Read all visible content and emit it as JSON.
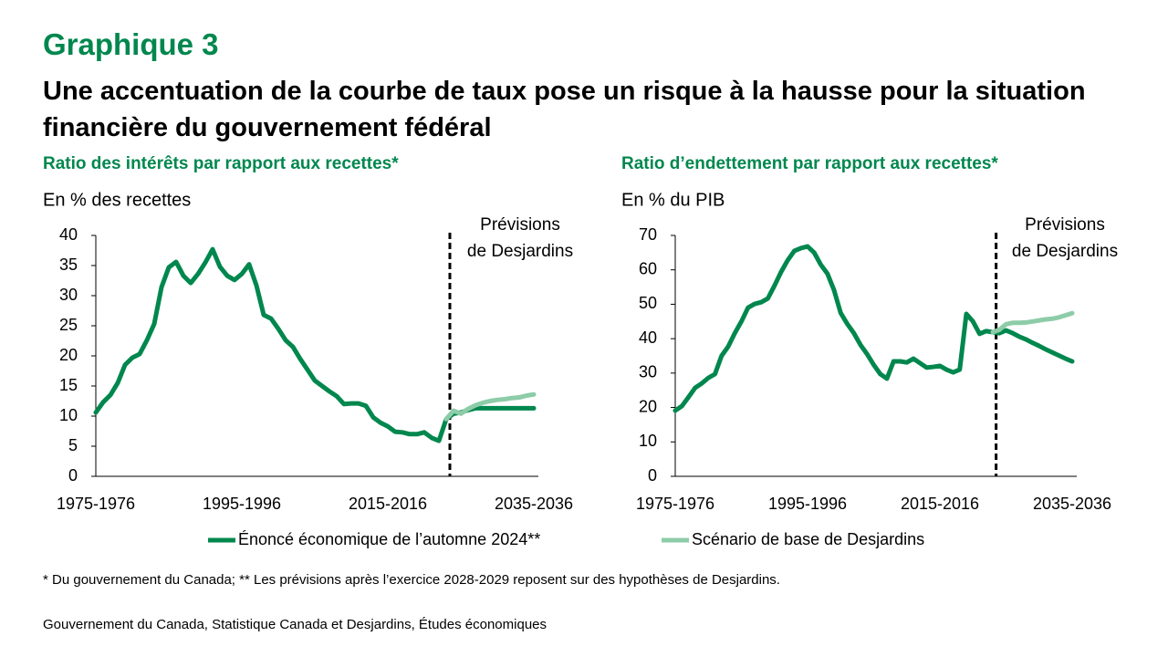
{
  "header": {
    "label": "Graphique 3",
    "title": "Une accentuation de la courbe de taux pose un risque à la hausse pour la situation financière du gouvernement fédéral"
  },
  "note": "* Du gouvernement du Canada; ** Les prévisions après l’exercice 2028-2029 reposent sur des hypothèses de Desjardins.",
  "source": "Gouvernement du Canada, Statistique Canada et Desjardins, Études économiques",
  "chart_data": [
    {
      "type": "line",
      "title": "Ratio des intérêts par rapport aux recettes*",
      "ylabel": "En % des recettes",
      "annotation": [
        "Prévisions",
        "de Desjardins"
      ],
      "categories": [
        "1975-1976",
        null,
        null,
        null,
        null,
        null,
        null,
        null,
        null,
        null,
        null,
        null,
        null,
        null,
        null,
        null,
        null,
        null,
        null,
        null,
        "1995-1996",
        null,
        null,
        null,
        null,
        null,
        null,
        null,
        null,
        null,
        null,
        null,
        null,
        null,
        null,
        null,
        null,
        null,
        null,
        null,
        "2015-2016",
        null,
        null,
        null,
        null,
        null,
        null,
        null,
        null,
        null,
        null,
        null,
        null,
        null,
        null,
        null,
        null,
        null,
        null,
        null,
        "2035-2036"
      ],
      "ylim": [
        0,
        40
      ],
      "yticks": [
        0,
        5,
        10,
        15,
        20,
        25,
        30,
        35,
        40
      ],
      "series": [
        {
          "name": "Énoncé économique de l’automne 2024**",
          "color": "#00874E",
          "values": [
            10.6,
            12.3,
            13.5,
            15.5,
            18.5,
            19.7,
            20.3,
            22.6,
            25.3,
            31.4,
            34.7,
            35.6,
            33.3,
            32.1,
            33.6,
            35.5,
            37.7,
            34.8,
            33.3,
            32.6,
            33.6,
            35.2,
            31.7,
            26.8,
            26.2,
            24.5,
            22.6,
            21.5,
            19.5,
            17.7,
            15.9,
            15.0,
            14.1,
            13.3,
            12.0,
            12.1,
            12.1,
            11.7,
            9.8,
            8.9,
            8.3,
            7.4,
            7.3,
            7.0,
            7.0,
            7.3,
            6.4,
            5.9,
            9.5,
            10.4,
            10.6,
            11.0,
            11.3,
            11.3,
            11.3,
            11.3,
            11.3,
            11.3,
            11.3,
            11.3,
            11.3
          ]
        },
        {
          "name": "Scénario de base de Desjardins",
          "color": "#8DCCA8",
          "values": [
            null,
            null,
            null,
            null,
            null,
            null,
            null,
            null,
            null,
            null,
            null,
            null,
            null,
            null,
            null,
            null,
            null,
            null,
            null,
            null,
            null,
            null,
            null,
            null,
            null,
            null,
            null,
            null,
            null,
            null,
            null,
            null,
            null,
            null,
            null,
            null,
            null,
            null,
            null,
            null,
            null,
            null,
            null,
            null,
            null,
            null,
            null,
            null,
            9.5,
            10.9,
            10.4,
            11.2,
            11.8,
            12.2,
            12.5,
            12.7,
            12.8,
            13.0,
            13.1,
            13.4,
            13.6
          ]
        }
      ]
    },
    {
      "type": "line",
      "title": "Ratio d’endettement par rapport aux recettes*",
      "ylabel": "En % du PIB",
      "annotation": [
        "Prévisions",
        "de Desjardins"
      ],
      "categories": [
        "1975-1976",
        null,
        null,
        null,
        null,
        null,
        null,
        null,
        null,
        null,
        null,
        null,
        null,
        null,
        null,
        null,
        null,
        null,
        null,
        null,
        "1995-1996",
        null,
        null,
        null,
        null,
        null,
        null,
        null,
        null,
        null,
        null,
        null,
        null,
        null,
        null,
        null,
        null,
        null,
        null,
        null,
        "2015-2016",
        null,
        null,
        null,
        null,
        null,
        null,
        null,
        null,
        null,
        null,
        null,
        null,
        null,
        null,
        null,
        null,
        null,
        null,
        null,
        "2035-2036"
      ],
      "ylim": [
        0,
        70
      ],
      "yticks": [
        0,
        10,
        20,
        30,
        40,
        50,
        60,
        70
      ],
      "series": [
        {
          "color": "#00874E",
          "values": [
            19.1,
            20.4,
            23.0,
            25.7,
            27.0,
            28.6,
            29.7,
            35.0,
            37.7,
            41.6,
            45.0,
            49.0,
            50.1,
            50.6,
            51.7,
            55.4,
            59.4,
            62.8,
            65.5,
            66.3,
            66.8,
            65.0,
            61.5,
            58.9,
            54.1,
            47.5,
            44.3,
            41.6,
            38.2,
            35.5,
            32.4,
            29.7,
            28.4,
            33.4,
            33.4,
            33.1,
            34.2,
            32.9,
            31.6,
            31.8,
            32.1,
            31.0,
            30.2,
            31.0,
            47.2,
            45.0,
            41.4,
            42.2,
            41.9,
            41.6,
            42.4,
            41.6,
            40.6,
            39.8,
            38.8,
            37.9,
            36.9,
            36.0,
            35.1,
            34.2,
            33.4
          ]
        },
        {
          "color": "#8DCCA8",
          "values": [
            null,
            null,
            null,
            null,
            null,
            null,
            null,
            null,
            null,
            null,
            null,
            null,
            null,
            null,
            null,
            null,
            null,
            null,
            null,
            null,
            null,
            null,
            null,
            null,
            null,
            null,
            null,
            null,
            null,
            null,
            null,
            null,
            null,
            null,
            null,
            null,
            null,
            null,
            null,
            null,
            null,
            null,
            null,
            null,
            null,
            null,
            null,
            null,
            41.9,
            42.6,
            44.2,
            44.6,
            44.6,
            44.7,
            45.0,
            45.3,
            45.6,
            45.8,
            46.2,
            46.8,
            47.4
          ]
        }
      ]
    }
  ]
}
